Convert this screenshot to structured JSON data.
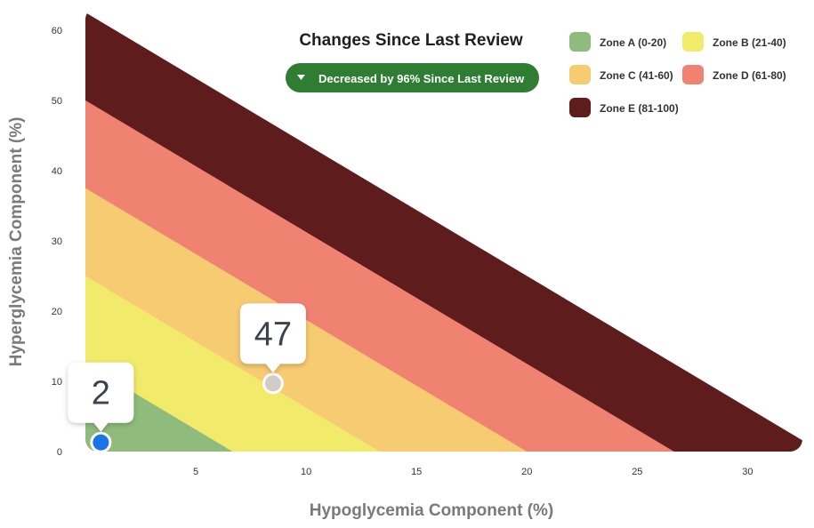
{
  "chart_data": {
    "type": "scatter",
    "title": "Changes Since Last Review",
    "badge": "Decreased by 96% Since Last Review",
    "xlabel": "Hypoglycemia Component (%)",
    "ylabel": "Hyperglycemia Component (%)",
    "x_ticks": [
      5,
      10,
      15,
      20,
      25,
      30
    ],
    "y_ticks": [
      0,
      10,
      20,
      30,
      40,
      50,
      60
    ],
    "zones": [
      {
        "name": "Zone A (0-20)",
        "color": "#8fbc7c",
        "max": 20
      },
      {
        "name": "Zone B (21-40)",
        "color": "#f1ea6a",
        "max": 40
      },
      {
        "name": "Zone C (41-60)",
        "color": "#f7cb72",
        "max": 60
      },
      {
        "name": "Zone D (61-80)",
        "color": "#f08272",
        "max": 80
      },
      {
        "name": "Zone E (81-100)",
        "color": "#5f1c1d",
        "max": 100
      }
    ],
    "points": [
      {
        "label": "47",
        "x": 8.5,
        "y": 9.7,
        "color": "#d2ccc8",
        "role": "previous"
      },
      {
        "label": "2",
        "x": 0.7,
        "y": 1.3,
        "color": "#1a73e8",
        "role": "current"
      }
    ]
  }
}
